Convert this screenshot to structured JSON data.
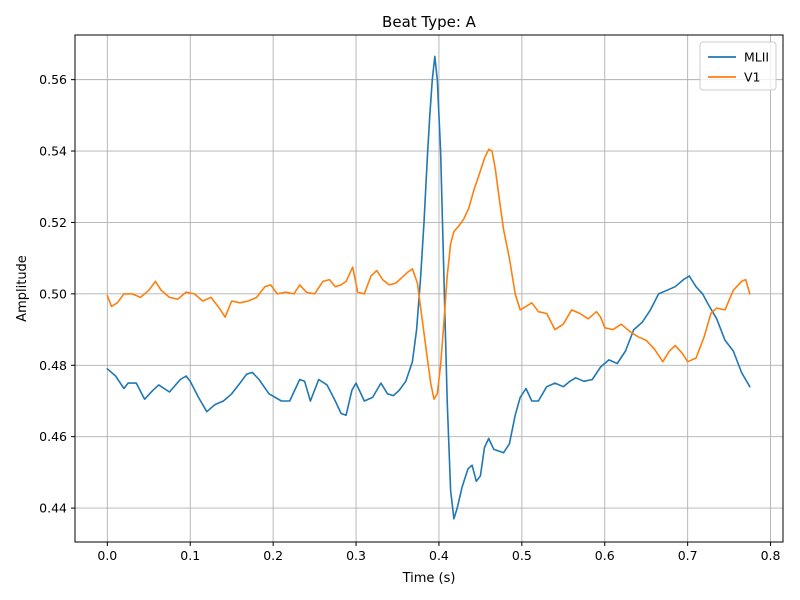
{
  "chart_data": {
    "type": "line",
    "title": "Beat Type: A",
    "xlabel": "Time (s)",
    "ylabel": "Amplitude",
    "xlim": [
      -0.039,
      0.815
    ],
    "ylim": [
      0.4305,
      0.5725
    ],
    "xticks": [
      0.0,
      0.1,
      0.2,
      0.3,
      0.4,
      0.5,
      0.6,
      0.7,
      0.8
    ],
    "xtick_labels": [
      "0.0",
      "0.1",
      "0.2",
      "0.3",
      "0.4",
      "0.5",
      "0.6",
      "0.7",
      "0.8"
    ],
    "yticks": [
      0.44,
      0.46,
      0.48,
      0.5,
      0.52,
      0.54,
      0.56
    ],
    "ytick_labels": [
      "0.44",
      "0.46",
      "0.48",
      "0.50",
      "0.52",
      "0.54",
      "0.56"
    ],
    "grid": true,
    "legend_position": "top-right",
    "series": [
      {
        "name": "MLII",
        "color": "#1f77b4",
        "x": [
          0.0,
          0.01,
          0.02,
          0.025,
          0.035,
          0.045,
          0.055,
          0.062,
          0.075,
          0.088,
          0.095,
          0.1,
          0.11,
          0.12,
          0.13,
          0.14,
          0.15,
          0.16,
          0.168,
          0.175,
          0.183,
          0.195,
          0.21,
          0.22,
          0.232,
          0.238,
          0.245,
          0.255,
          0.265,
          0.275,
          0.282,
          0.288,
          0.295,
          0.3,
          0.31,
          0.32,
          0.33,
          0.338,
          0.345,
          0.352,
          0.36,
          0.368,
          0.373,
          0.378,
          0.382,
          0.386,
          0.389,
          0.392,
          0.395,
          0.398,
          0.402,
          0.406,
          0.41,
          0.414,
          0.418,
          0.422,
          0.428,
          0.435,
          0.44,
          0.445,
          0.45,
          0.455,
          0.46,
          0.466,
          0.472,
          0.478,
          0.485,
          0.492,
          0.498,
          0.505,
          0.512,
          0.52,
          0.53,
          0.54,
          0.55,
          0.558,
          0.565,
          0.575,
          0.585,
          0.595,
          0.605,
          0.615,
          0.625,
          0.635,
          0.645,
          0.655,
          0.665,
          0.675,
          0.685,
          0.695,
          0.702,
          0.71,
          0.718,
          0.725,
          0.735,
          0.745,
          0.755,
          0.765,
          0.775
        ],
        "y": [
          0.479,
          0.477,
          0.4735,
          0.475,
          0.475,
          0.4705,
          0.473,
          0.4745,
          0.4725,
          0.476,
          0.477,
          0.4755,
          0.471,
          0.467,
          0.469,
          0.47,
          0.472,
          0.475,
          0.4775,
          0.478,
          0.476,
          0.472,
          0.47,
          0.47,
          0.476,
          0.4755,
          0.47,
          0.476,
          0.4745,
          0.47,
          0.4665,
          0.466,
          0.473,
          0.475,
          0.47,
          0.471,
          0.475,
          0.472,
          0.4715,
          0.473,
          0.4755,
          0.481,
          0.49,
          0.505,
          0.52,
          0.538,
          0.55,
          0.56,
          0.5665,
          0.56,
          0.54,
          0.505,
          0.47,
          0.445,
          0.437,
          0.44,
          0.446,
          0.451,
          0.452,
          0.4475,
          0.449,
          0.457,
          0.4595,
          0.4565,
          0.456,
          0.4555,
          0.458,
          0.466,
          0.471,
          0.4735,
          0.47,
          0.47,
          0.474,
          0.475,
          0.474,
          0.4755,
          0.4765,
          0.4755,
          0.476,
          0.4795,
          0.4815,
          0.4805,
          0.484,
          0.49,
          0.492,
          0.4955,
          0.5,
          0.501,
          0.502,
          0.504,
          0.505,
          0.502,
          0.5,
          0.497,
          0.493,
          0.487,
          0.484,
          0.478,
          0.474
        ]
      },
      {
        "name": "V1",
        "color": "#ff7f0e",
        "x": [
          0.0,
          0.005,
          0.012,
          0.02,
          0.03,
          0.04,
          0.05,
          0.058,
          0.065,
          0.075,
          0.085,
          0.095,
          0.105,
          0.115,
          0.125,
          0.135,
          0.142,
          0.15,
          0.16,
          0.17,
          0.18,
          0.19,
          0.197,
          0.205,
          0.215,
          0.225,
          0.232,
          0.24,
          0.25,
          0.26,
          0.268,
          0.275,
          0.282,
          0.288,
          0.296,
          0.302,
          0.31,
          0.318,
          0.325,
          0.332,
          0.34,
          0.348,
          0.355,
          0.362,
          0.368,
          0.374,
          0.378,
          0.382,
          0.386,
          0.39,
          0.394,
          0.398,
          0.402,
          0.406,
          0.41,
          0.414,
          0.418,
          0.424,
          0.43,
          0.436,
          0.442,
          0.448,
          0.455,
          0.46,
          0.464,
          0.468,
          0.472,
          0.478,
          0.485,
          0.492,
          0.498,
          0.505,
          0.512,
          0.52,
          0.53,
          0.54,
          0.55,
          0.56,
          0.57,
          0.58,
          0.59,
          0.595,
          0.6,
          0.61,
          0.62,
          0.63,
          0.64,
          0.65,
          0.66,
          0.67,
          0.678,
          0.685,
          0.693,
          0.7,
          0.71,
          0.72,
          0.728,
          0.735,
          0.745,
          0.755,
          0.765,
          0.77,
          0.775
        ],
        "y": [
          0.4995,
          0.4965,
          0.4975,
          0.5,
          0.5,
          0.499,
          0.501,
          0.5035,
          0.501,
          0.499,
          0.4985,
          0.5005,
          0.5,
          0.498,
          0.499,
          0.496,
          0.4935,
          0.498,
          0.4975,
          0.498,
          0.499,
          0.502,
          0.5025,
          0.5,
          0.5005,
          0.5,
          0.5025,
          0.5005,
          0.5,
          0.5035,
          0.504,
          0.502,
          0.5025,
          0.5035,
          0.5075,
          0.5005,
          0.5,
          0.505,
          0.5065,
          0.504,
          0.5025,
          0.503,
          0.5045,
          0.506,
          0.507,
          0.503,
          0.496,
          0.489,
          0.482,
          0.475,
          0.4705,
          0.472,
          0.48,
          0.492,
          0.505,
          0.514,
          0.5175,
          0.519,
          0.521,
          0.524,
          0.529,
          0.533,
          0.538,
          0.5405,
          0.54,
          0.535,
          0.528,
          0.518,
          0.51,
          0.5,
          0.4955,
          0.4965,
          0.4975,
          0.495,
          0.4945,
          0.49,
          0.4915,
          0.4955,
          0.4945,
          0.493,
          0.495,
          0.4935,
          0.4905,
          0.49,
          0.4915,
          0.4895,
          0.488,
          0.487,
          0.4845,
          0.481,
          0.484,
          0.4855,
          0.4835,
          0.481,
          0.482,
          0.488,
          0.4945,
          0.496,
          0.4955,
          0.501,
          0.5035,
          0.504,
          0.5
        ]
      }
    ]
  }
}
